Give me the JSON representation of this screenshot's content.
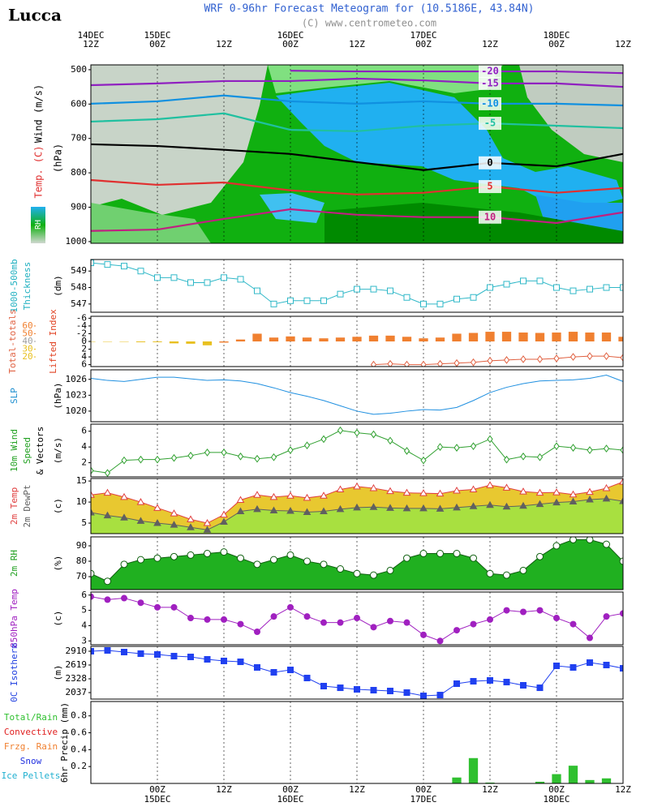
{
  "header": {
    "station": "Lucca",
    "title": "WRF 0-96hr Forecast Meteogram for (10.5186E, 43.84N)",
    "subtitle": "(C) www.centrometeo.com"
  },
  "time_axis": {
    "top": [
      {
        "day": "14DEC",
        "hour": "12Z"
      },
      {
        "day": "15DEC",
        "hour": "00Z"
      },
      {
        "hour": "12Z"
      },
      {
        "day": "16DEC",
        "hour": "00Z"
      },
      {
        "hour": "12Z"
      },
      {
        "day": "17DEC",
        "hour": "00Z"
      },
      {
        "hour": "12Z"
      },
      {
        "day": "18DEC",
        "hour": "00Z"
      },
      {
        "hour": "12Z"
      }
    ],
    "bottom": [
      {
        "hour": "00Z",
        "day": "15DEC"
      },
      {
        "hour": "12Z"
      },
      {
        "hour": "00Z",
        "day": "16DEC"
      },
      {
        "hour": "12Z"
      },
      {
        "hour": "00Z",
        "day": "17DEC"
      },
      {
        "hour": "12Z"
      },
      {
        "hour": "00Z",
        "day": "18DEC"
      },
      {
        "hour": "12Z"
      }
    ]
  },
  "chart_data": [
    {
      "type": "contour",
      "ylabel": [
        "Wind (m/s)",
        "Temp. (C)"
      ],
      "ylabel_colors": [
        "#000000",
        "#e03030"
      ],
      "yunit": "(hPa)",
      "legend_label": "RH",
      "ylim": [
        1005,
        486
      ],
      "yticks": [
        500,
        600,
        700,
        800,
        900,
        1000
      ],
      "series": [
        {
          "name": "-20",
          "color": "#9020c0",
          "values": [
            null,
            null,
            null,
            503,
            505,
            505,
            505,
            505,
            510
          ]
        },
        {
          "name": "-15",
          "color": "#9020c0",
          "values": [
            545,
            540,
            533,
            533,
            526,
            531,
            540,
            540,
            550
          ]
        },
        {
          "name": "-10",
          "color": "#1090e0",
          "values": [
            599,
            592,
            575,
            592,
            599,
            592,
            599,
            599,
            604
          ]
        },
        {
          "name": "-5",
          "color": "#20c0a0",
          "values": [
            651,
            644,
            627,
            675,
            679,
            663,
            656,
            663,
            670
          ]
        },
        {
          "name": "0",
          "color": "#000000",
          "values": [
            717,
            722,
            733,
            745,
            769,
            792,
            771,
            781,
            745
          ]
        },
        {
          "name": "5",
          "color": "#e03030",
          "values": [
            821,
            835,
            828,
            851,
            863,
            858,
            840,
            858,
            844
          ]
        },
        {
          "name": "10",
          "color": "#c02080",
          "values": [
            969,
            965,
            934,
            906,
            922,
            929,
            929,
            946,
            915
          ]
        }
      ]
    },
    {
      "type": "line",
      "ylabel": [
        "1000-500mb",
        "Thickness"
      ],
      "color": "#20b0c0",
      "yunit": "(dm)",
      "ylim": [
        546.5,
        549.7
      ],
      "yticks": [
        547,
        548,
        549
      ],
      "series": [
        {
          "color": "#30b8c8",
          "marker": "square",
          "values": [
            549.5,
            549.4,
            549.3,
            549.0,
            548.6,
            548.6,
            548.3,
            548.3,
            548.6,
            548.5,
            547.8,
            547.0,
            547.2,
            547.2,
            547.2,
            547.6,
            547.9,
            547.9,
            547.8,
            547.4,
            547.0,
            547.0,
            547.3,
            547.4,
            548.0,
            548.2,
            548.4,
            548.4,
            548.0,
            547.8,
            547.9,
            548.0,
            548.0
          ]
        }
      ]
    },
    {
      "type": "bar",
      "ylim": [
        6.5,
        -6.5
      ],
      "yticks": [
        -6,
        -4,
        -2,
        0,
        2,
        4,
        6
      ],
      "y2lim": [
        7.5,
        72.5
      ],
      "y2ticks": [
        60,
        50,
        40,
        30,
        20
      ],
      "y2tick_colors": [
        "#f08030",
        "#f08030",
        "#a0a0a0",
        "#e8c020",
        "#e8c020"
      ],
      "series": [
        {
          "name": "Total-totals",
          "color": "#e06040",
          "axis": "y2",
          "marker": "diamond",
          "values": [
            null,
            null,
            null,
            null,
            null,
            null,
            null,
            null,
            null,
            null,
            null,
            null,
            null,
            null,
            null,
            null,
            null,
            10,
            11,
            10,
            10,
            11,
            12,
            13,
            15,
            16,
            17,
            17,
            18,
            20,
            21,
            21,
            19
          ]
        },
        {
          "name": "Lifted Index",
          "color": "#e04020",
          "bar_colors": [
            "#e8c020",
            "#e8c020",
            "#e8c020",
            "#e8c020",
            "#e8c020",
            "#e8c020",
            "#e8c020",
            "#e8c020",
            "#f08030",
            "#f08030",
            "#f08030",
            "#f08030",
            "#f08030",
            "#f08030",
            "#f08030",
            "#f08030",
            "#f08030",
            "#f08030",
            "#f08030",
            "#f08030",
            "#f08030",
            "#f08030",
            "#f08030",
            "#f08030",
            "#f08030",
            "#f08030",
            "#f08030",
            "#f08030",
            "#f08030",
            "#f08030",
            "#f08030",
            "#f08030",
            "#f08030"
          ],
          "values": [
            0.1,
            0.1,
            0.1,
            0.2,
            0.2,
            0.5,
            0.6,
            1.0,
            0.3,
            -0.5,
            -2,
            -1,
            -1.3,
            -1,
            -0.8,
            -1,
            -1.2,
            -1.5,
            -1.5,
            -1.2,
            -0.8,
            -1,
            -2,
            -2.2,
            -2.5,
            -2.5,
            -2.3,
            -2.2,
            -2.3,
            -2.5,
            -2.3,
            -2.3,
            -1.2
          ]
        }
      ]
    },
    {
      "type": "line",
      "ylabel": [
        "SLP"
      ],
      "color": "#2090d0",
      "yunit": "(hPa)",
      "ylim": [
        1018,
        1027.8
      ],
      "yticks": [
        1020,
        1023,
        1026
      ],
      "series": [
        {
          "color": "#2090e0",
          "values": [
            1026.2,
            1025.8,
            1025.6,
            1026.0,
            1026.4,
            1026.4,
            1026.1,
            1025.8,
            1025.9,
            1025.7,
            1025.2,
            1024.4,
            1023.5,
            1022.8,
            1022.0,
            1021.0,
            1020.0,
            1019.4,
            1019.6,
            1020.0,
            1020.3,
            1020.2,
            1020.7,
            1022.0,
            1023.5,
            1024.5,
            1025.2,
            1025.7,
            1025.8,
            1025.9,
            1026.2,
            1026.8,
            1025.6
          ]
        }
      ]
    },
    {
      "type": "line",
      "ylabel": [
        "10m Wind",
        "Speed",
        "& Vectors"
      ],
      "ylabel_colors": [
        "#20a020",
        "#20a020",
        "#000000"
      ],
      "yunit": "(m/s)",
      "ylim": [
        0.2,
        6.9
      ],
      "yticks": [
        2,
        4,
        6
      ],
      "series": [
        {
          "color": "#30a030",
          "marker": "diamond",
          "values": [
            1.0,
            0.7,
            2.3,
            2.4,
            2.4,
            2.6,
            2.9,
            3.3,
            3.3,
            2.8,
            2.5,
            2.7,
            3.6,
            4.2,
            5.0,
            6.1,
            5.8,
            5.6,
            4.8,
            3.5,
            2.3,
            4.0,
            3.9,
            4.1,
            5.0,
            2.4,
            2.8,
            2.7,
            4.1,
            3.9,
            3.6,
            3.8,
            3.6
          ]
        }
      ]
    },
    {
      "type": "area",
      "yunit": "(c)",
      "ylim": [
        2.5,
        15.6
      ],
      "yticks": [
        5,
        10,
        15
      ],
      "series": [
        {
          "name": "2m Temp",
          "color": "#e04040",
          "fill": "#e8c830",
          "marker": "triangle",
          "values": [
            11.7,
            12.2,
            11.2,
            10.0,
            8.6,
            7.3,
            5.9,
            5.0,
            7.0,
            10.5,
            11.7,
            11.2,
            11.5,
            11.0,
            11.5,
            13.0,
            13.7,
            13.3,
            12.6,
            12.2,
            12.1,
            12.0,
            12.7,
            13.0,
            14.0,
            13.4,
            12.5,
            12.2,
            12.3,
            11.8,
            12.4,
            13.3,
            14.8
          ]
        },
        {
          "name": "2m DewPt",
          "color": "#606060",
          "fill": "#a8e040",
          "marker": "triangle-filled",
          "values": [
            7.5,
            6.8,
            6.3,
            5.5,
            5.0,
            4.6,
            4.0,
            3.4,
            5.3,
            7.8,
            8.3,
            8.0,
            7.9,
            7.6,
            7.8,
            8.3,
            8.7,
            8.8,
            8.6,
            8.5,
            8.5,
            8.4,
            8.7,
            9.0,
            9.3,
            8.9,
            9.1,
            9.5,
            9.9,
            10.1,
            10.6,
            10.8,
            10.2
          ]
        }
      ]
    },
    {
      "type": "area",
      "ylabel": [
        "2m RH"
      ],
      "color": "#20a020",
      "yunit": "(%)",
      "ylim": [
        61.6,
        95.8
      ],
      "yticks": [
        70,
        80,
        90
      ],
      "series": [
        {
          "color": "#106010",
          "fill": "#20b020",
          "marker": "circle",
          "values": [
            72,
            67,
            78,
            81,
            82,
            83,
            84,
            85,
            86,
            82,
            78,
            81,
            84,
            80,
            78,
            75,
            72,
            71,
            74,
            82,
            85,
            85,
            85,
            82,
            72,
            71,
            74,
            83,
            90,
            94,
            94,
            91,
            80
          ]
        }
      ]
    },
    {
      "type": "line",
      "ylabel": [
        "850hPa Temp"
      ],
      "color": "#a020c0",
      "yunit": "(c)",
      "ylim": [
        2.75,
        6.2
      ],
      "yticks": [
        3,
        4,
        5,
        6
      ],
      "series": [
        {
          "color": "#a020c0",
          "marker": "dot",
          "values": [
            5.9,
            5.7,
            5.8,
            5.5,
            5.2,
            5.2,
            4.5,
            4.4,
            4.4,
            4.1,
            3.6,
            4.6,
            5.2,
            4.6,
            4.2,
            4.2,
            4.5,
            3.9,
            4.3,
            4.2,
            3.4,
            3.0,
            3.7,
            4.1,
            4.4,
            5.0,
            4.9,
            5.0,
            4.5,
            4.1,
            3.2,
            4.6,
            4.8
          ]
        }
      ]
    },
    {
      "type": "line",
      "ylabel": [
        "0C Isotherm"
      ],
      "color": "#2040e0",
      "yunit": "(m)",
      "ylim": [
        1900,
        3013
      ],
      "yticks": [
        2037,
        2328,
        2619,
        2910
      ],
      "series": [
        {
          "color": "#2040f0",
          "marker": "square-filled",
          "values": [
            2910,
            2927,
            2893,
            2859,
            2842,
            2807,
            2790,
            2739,
            2705,
            2687,
            2568,
            2465,
            2516,
            2345,
            2174,
            2139,
            2105,
            2088,
            2071,
            2037,
            1968,
            1985,
            2225,
            2276,
            2294,
            2259,
            2191,
            2139,
            2602,
            2568,
            2670,
            2619,
            2550
          ]
        }
      ]
    },
    {
      "type": "bar",
      "ylabel": [
        "6hr Precip (mm)"
      ],
      "color": "#000000",
      "ylim": [
        0,
        0.97
      ],
      "yticks": [
        0.2,
        0.4,
        0.6,
        0.8
      ],
      "series": [
        {
          "name": "Total/Rain",
          "color": "#30c030",
          "values": [
            0,
            0,
            0,
            0,
            0,
            0,
            0,
            0,
            0,
            0,
            0,
            0,
            0,
            0,
            0,
            0,
            0,
            0,
            0,
            0,
            0,
            0,
            0.07,
            0.3,
            0.01,
            0,
            0,
            0.02,
            0.11,
            0.21,
            0.04,
            0.06,
            0
          ]
        },
        {
          "name": "Convective",
          "color": "#e02020"
        },
        {
          "name": "Frzg. Rain",
          "color": "#f08030"
        },
        {
          "name": "Snow",
          "color": "#2030e0"
        },
        {
          "name": "Ice Pellets",
          "color": "#20b0d0"
        }
      ]
    }
  ]
}
